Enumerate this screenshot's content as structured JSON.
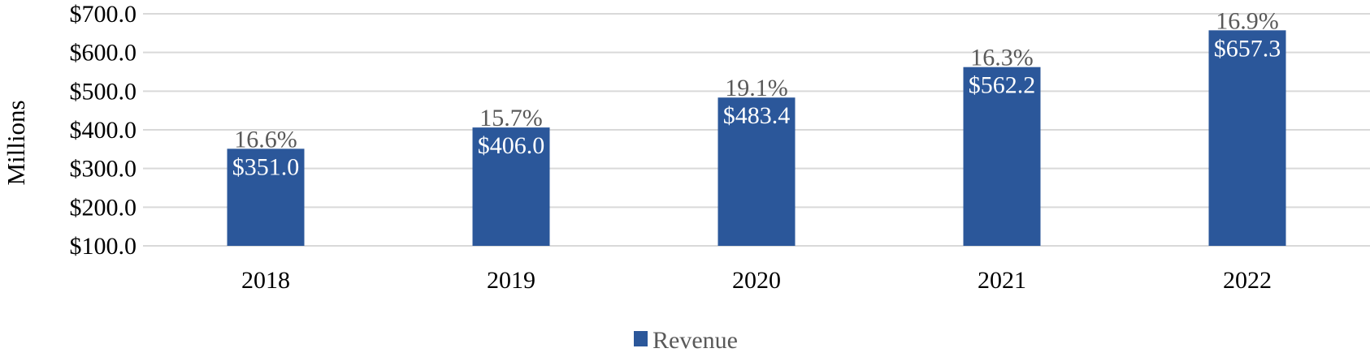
{
  "chart_data": {
    "type": "bar",
    "title": "",
    "xlabel": "",
    "ylabel": "Millions",
    "ylim": [
      100,
      700
    ],
    "y_ticks": [
      {
        "value": 100,
        "label": "$100.0"
      },
      {
        "value": 200,
        "label": "$200.0"
      },
      {
        "value": 300,
        "label": "$300.0"
      },
      {
        "value": 400,
        "label": "$400.0"
      },
      {
        "value": 500,
        "label": "$500.0"
      },
      {
        "value": 600,
        "label": "$600.0"
      },
      {
        "value": 700,
        "label": "$700.0"
      }
    ],
    "grid": true,
    "categories": [
      "2018",
      "2019",
      "2020",
      "2021",
      "2022"
    ],
    "series": [
      {
        "name": "Revenue",
        "color": "#2b579a",
        "values": [
          351.0,
          406.0,
          483.4,
          562.2,
          657.3
        ],
        "value_labels": [
          "$351.0",
          "$406.0",
          "$483.4",
          "$562.2",
          "$657.3"
        ],
        "secondary_labels": [
          "16.6%",
          "15.7%",
          "19.1%",
          "16.3%",
          "16.9%"
        ]
      }
    ],
    "legend": {
      "position": "bottom",
      "entries": [
        "Revenue"
      ]
    }
  }
}
